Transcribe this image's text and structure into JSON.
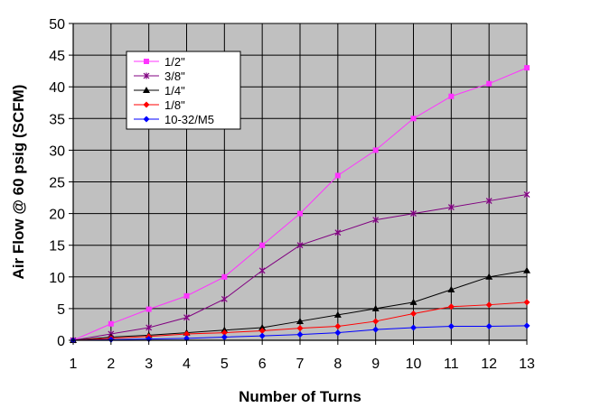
{
  "chart_data": {
    "type": "line",
    "title": "",
    "xlabel": "Number of Turns",
    "ylabel": "Air Flow @ 60 psig (SCFM)",
    "x": [
      1,
      2,
      3,
      4,
      5,
      6,
      7,
      8,
      9,
      10,
      11,
      12,
      13
    ],
    "xlim": [
      1,
      13
    ],
    "ylim": [
      0,
      50
    ],
    "yticks": [
      0,
      5,
      10,
      15,
      20,
      25,
      30,
      35,
      40,
      45,
      50
    ],
    "grid": true,
    "plot_background": "#c0c0c0",
    "legend_position": "top-left",
    "series": [
      {
        "name": "1/2\"",
        "color": "#ff33ff",
        "marker": "square",
        "values": [
          0,
          2.6,
          4.9,
          7,
          10,
          15,
          20,
          26,
          30,
          35,
          38.5,
          40.5,
          43
        ]
      },
      {
        "name": "3/8\"",
        "color": "#800080",
        "marker": "star",
        "values": [
          0,
          1,
          2,
          3.6,
          6.5,
          11,
          15,
          17,
          19,
          20,
          21,
          22,
          23
        ]
      },
      {
        "name": "1/4\"",
        "color": "#000000",
        "marker": "triangle",
        "values": [
          0,
          0.5,
          0.8,
          1.2,
          1.6,
          2,
          3,
          4,
          5,
          6,
          8,
          10,
          11
        ]
      },
      {
        "name": "1/8\"",
        "color": "#ff0000",
        "marker": "diamond",
        "values": [
          0,
          0.3,
          0.6,
          1,
          1.2,
          1.5,
          1.9,
          2.2,
          3,
          4.2,
          5.3,
          5.6,
          6
        ]
      },
      {
        "name": "10-32/M5",
        "color": "#0000ff",
        "marker": "diamond",
        "values": [
          0,
          0.1,
          0.2,
          0.3,
          0.5,
          0.7,
          0.9,
          1.2,
          1.7,
          2,
          2.2,
          2.2,
          2.3
        ]
      }
    ]
  }
}
